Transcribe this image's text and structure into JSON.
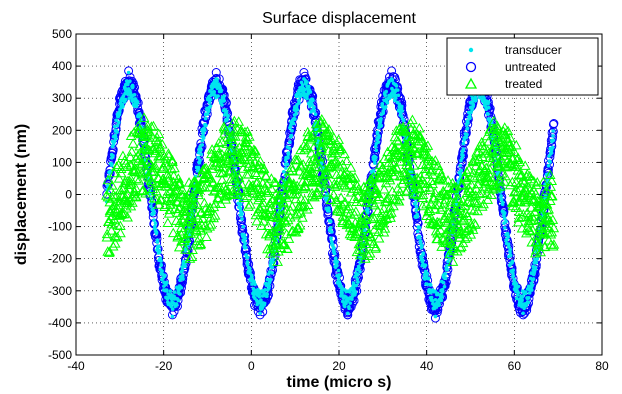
{
  "chart_data": {
    "type": "scatter",
    "title": "Surface displacement",
    "xlabel": "time (micro s)",
    "ylabel": "displacement (nm)",
    "xlim": [
      -40,
      80
    ],
    "ylim": [
      -500,
      500
    ],
    "xticks": [
      -40,
      -20,
      0,
      20,
      40,
      60,
      80
    ],
    "yticks": [
      -500,
      -400,
      -300,
      -200,
      -100,
      0,
      100,
      200,
      300,
      400,
      500
    ],
    "grid": true,
    "legend_position": "top-right",
    "series": [
      {
        "name": "transducer",
        "marker": "point",
        "color": "#00e5ee",
        "x_range": [
          -33,
          69
        ],
        "amplitude": 330,
        "period": 20,
        "offset": 0,
        "spread": 60,
        "peaks": [
          {
            "x": -28,
            "y": 380
          },
          {
            "x": -18,
            "y": -380
          },
          {
            "x": -8,
            "y": 360
          },
          {
            "x": 2,
            "y": -370
          },
          {
            "x": 12,
            "y": 360
          },
          {
            "x": 22,
            "y": -370
          },
          {
            "x": 32,
            "y": 360
          },
          {
            "x": 42,
            "y": -380
          },
          {
            "x": 52,
            "y": 360
          },
          {
            "x": 62,
            "y": -370
          }
        ]
      },
      {
        "name": "untreated",
        "marker": "circle",
        "color": "#0000ff",
        "x_range": [
          -33,
          69
        ],
        "amplitude": 345,
        "period": 20,
        "offset": 0,
        "spread": 35,
        "peaks": [
          {
            "x": -28,
            "y": 385
          },
          {
            "x": -18,
            "y": -375
          },
          {
            "x": -8,
            "y": 380
          },
          {
            "x": 2,
            "y": -375
          },
          {
            "x": 12,
            "y": 380
          },
          {
            "x": 22,
            "y": -375
          },
          {
            "x": 32,
            "y": 385
          },
          {
            "x": 42,
            "y": -385
          },
          {
            "x": 52,
            "y": 375
          },
          {
            "x": 62,
            "y": -375
          }
        ]
      },
      {
        "name": "treated",
        "marker": "triangle",
        "color": "#00ff00",
        "x_range": [
          -33,
          69
        ],
        "amplitude": 100,
        "period": 20,
        "offset": 20,
        "spread": 150,
        "peaks": [
          {
            "x": -24,
            "y": 150
          },
          {
            "x": -14,
            "y": -200
          },
          {
            "x": -4,
            "y": 160
          },
          {
            "x": 6,
            "y": -210
          },
          {
            "x": 16,
            "y": 150
          },
          {
            "x": 26,
            "y": -200
          },
          {
            "x": 36,
            "y": 160
          },
          {
            "x": 46,
            "y": -210
          },
          {
            "x": 56,
            "y": 160
          },
          {
            "x": 66,
            "y": -180
          }
        ]
      }
    ]
  }
}
